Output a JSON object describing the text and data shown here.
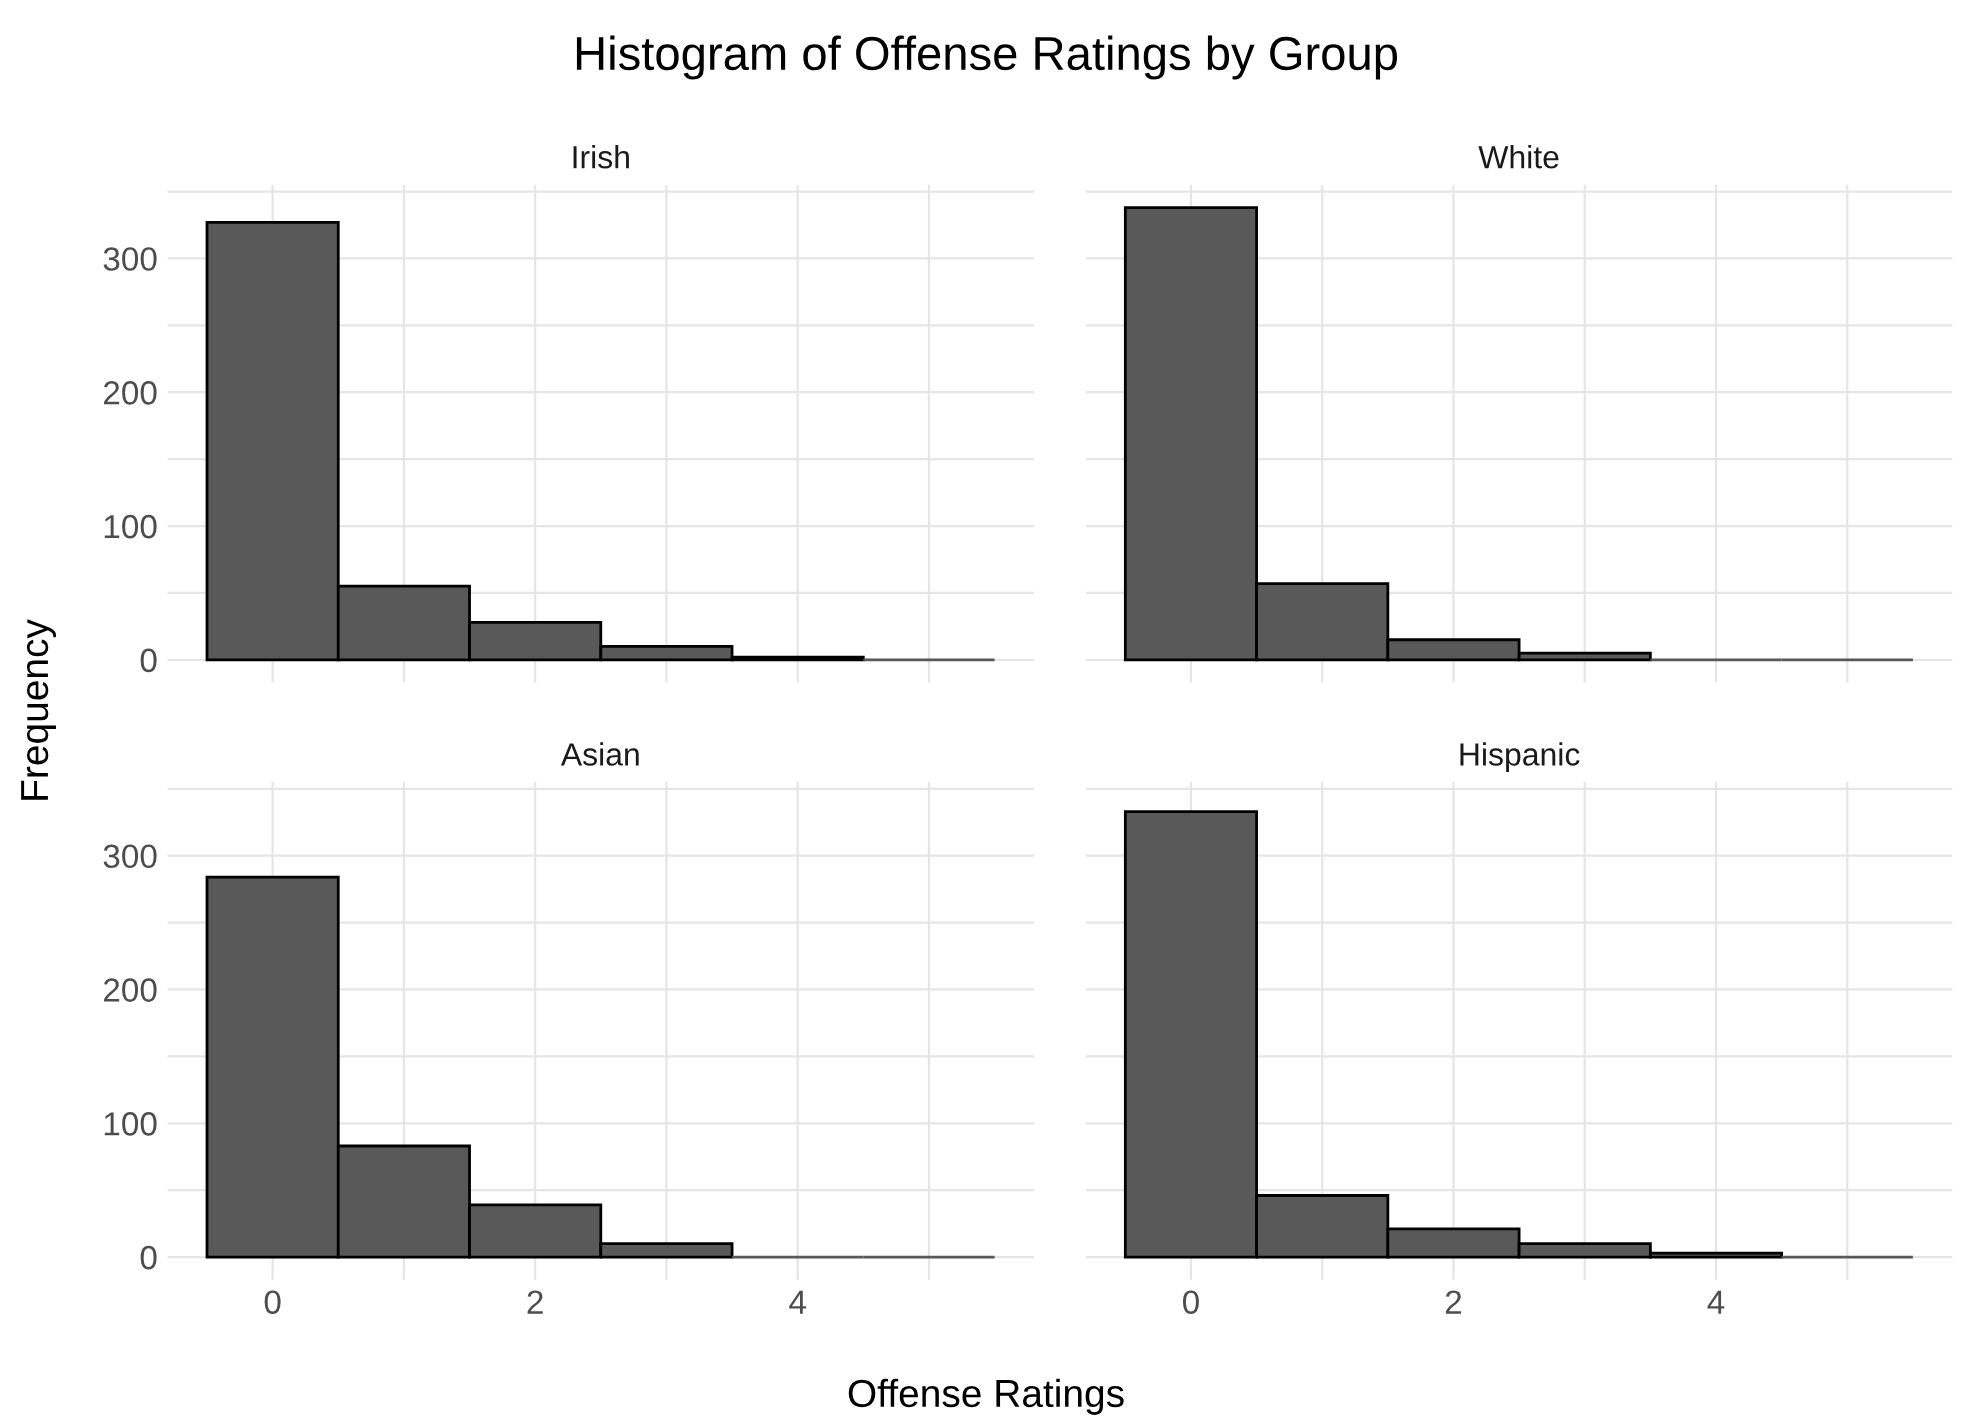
{
  "chart_data": [
    {
      "type": "histogram",
      "title": "Histogram of Offense Ratings by Group",
      "subtitle": "Irish",
      "xlabel": "Offense Ratings",
      "ylabel": "Frequency",
      "bins": [
        -0.5,
        0.5,
        1.5,
        2.5,
        3.5,
        4.5,
        5.5
      ],
      "values": [
        327,
        55,
        28,
        10,
        2,
        0
      ],
      "color": "#595959",
      "xlim": [
        -0.8,
        5.8
      ],
      "ylim": [
        -17,
        355
      ],
      "xticks": [
        0,
        {
          "value": 1,
          "label": null
        },
        2,
        {
          "value": 3,
          "label": null
        },
        4,
        {
          "value": 5,
          "label": null
        }
      ],
      "yticks": [
        0,
        {
          "value": 50,
          "label": null
        },
        100,
        {
          "value": 150,
          "label": null
        },
        200,
        {
          "value": 250,
          "label": null
        },
        300,
        {
          "value": 350,
          "label": null
        }
      ],
      "grid": true,
      "tick_labels": "y"
    },
    {
      "type": "histogram",
      "subtitle": "White",
      "bins": [
        -0.5,
        0.5,
        1.5,
        2.5,
        3.5,
        4.5,
        5.5
      ],
      "values": [
        338,
        57,
        15,
        5,
        0,
        0
      ],
      "color": "#595959",
      "xlim": [
        -0.8,
        5.8
      ],
      "ylim": [
        -17,
        355
      ],
      "xticks": [
        0,
        {
          "value": 1,
          "label": null
        },
        2,
        {
          "value": 3,
          "label": null
        },
        4,
        {
          "value": 5,
          "label": null
        }
      ],
      "yticks": [
        0,
        {
          "value": 50,
          "label": null
        },
        100,
        {
          "value": 150,
          "label": null
        },
        200,
        {
          "value": 250,
          "label": null
        },
        300,
        {
          "value": 350,
          "label": null
        }
      ],
      "grid": true,
      "tick_labels": false
    },
    {
      "type": "histogram",
      "subtitle": "Asian",
      "bins": [
        -0.5,
        0.5,
        1.5,
        2.5,
        3.5,
        4.5,
        5.5
      ],
      "values": [
        284,
        83,
        39,
        10,
        0,
        0
      ],
      "color": "#595959",
      "xlim": [
        -0.8,
        5.8
      ],
      "ylim": [
        -17,
        355
      ],
      "xticks": [
        0,
        {
          "value": 1,
          "label": null
        },
        2,
        {
          "value": 3,
          "label": null
        },
        4,
        {
          "value": 5,
          "label": null
        }
      ],
      "yticks": [
        0,
        {
          "value": 50,
          "label": null
        },
        100,
        {
          "value": 150,
          "label": null
        },
        200,
        {
          "value": 250,
          "label": null
        },
        300,
        {
          "value": 350,
          "label": null
        }
      ],
      "grid": true
    },
    {
      "type": "histogram",
      "subtitle": "Hispanic",
      "bins": [
        -0.5,
        0.5,
        1.5,
        2.5,
        3.5,
        4.5,
        5.5
      ],
      "values": [
        333,
        46,
        21,
        10,
        3,
        0
      ],
      "color": "#595959",
      "xlim": [
        -0.8,
        5.8
      ],
      "ylim": [
        -17,
        355
      ],
      "xticks": [
        0,
        {
          "value": 1,
          "label": null
        },
        2,
        {
          "value": 3,
          "label": null
        },
        4,
        {
          "value": 5,
          "label": null
        }
      ],
      "yticks": [
        0,
        {
          "value": 50,
          "label": null
        },
        100,
        {
          "value": 150,
          "label": null
        },
        200,
        {
          "value": 250,
          "label": null
        },
        300,
        {
          "value": 350,
          "label": null
        }
      ],
      "grid": true,
      "tick_labels": "x"
    }
  ]
}
